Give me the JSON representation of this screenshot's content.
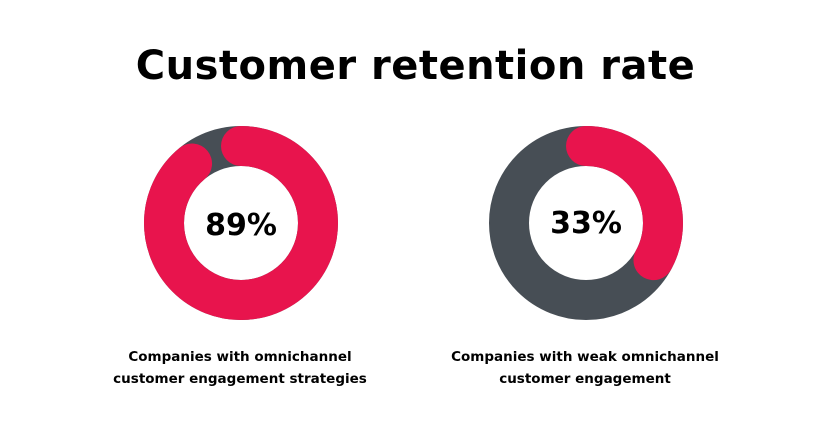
{
  "chart_data": {
    "type": "pie",
    "title": "Customer retention rate",
    "colors": {
      "value": "#E8144D",
      "remainder": "#474E55"
    },
    "charts": [
      {
        "value": 89,
        "label": "89%",
        "caption": [
          "Companies with omnichannel",
          "customer engagement strategies"
        ]
      },
      {
        "value": 33,
        "label": "33%",
        "caption": [
          "Companies with weak omnichannel",
          "customer engagement"
        ]
      }
    ]
  }
}
